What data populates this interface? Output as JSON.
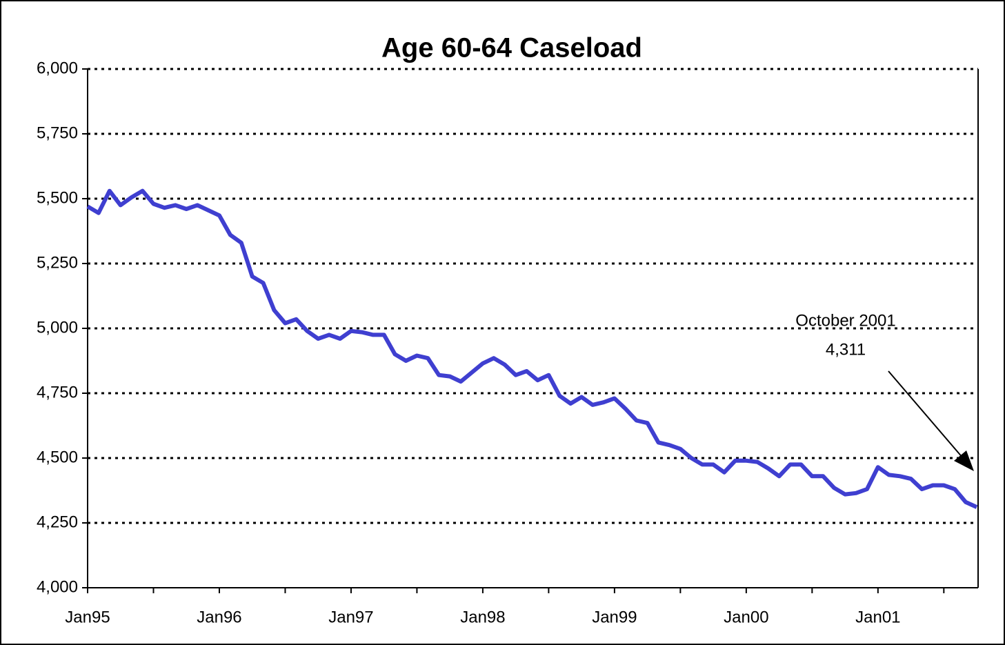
{
  "chart_data": {
    "type": "line",
    "title": "Age 60-64 Caseload",
    "categories": [
      "Jan95",
      null,
      null,
      null,
      null,
      null,
      null,
      null,
      null,
      null,
      null,
      null,
      "Jan96",
      null,
      null,
      null,
      null,
      null,
      null,
      null,
      null,
      null,
      null,
      null,
      "Jan97",
      null,
      null,
      null,
      null,
      null,
      null,
      null,
      null,
      null,
      null,
      null,
      "Jan98",
      null,
      null,
      null,
      null,
      null,
      null,
      null,
      null,
      null,
      null,
      null,
      "Jan99",
      null,
      null,
      null,
      null,
      null,
      null,
      null,
      null,
      null,
      null,
      null,
      "Jan00",
      null,
      null,
      null,
      null,
      null,
      null,
      null,
      null,
      null,
      null,
      null,
      "Jan01",
      null,
      null,
      null,
      null,
      null,
      null,
      null,
      null,
      null
    ],
    "series": [
      {
        "color": "#3f3fd0",
        "values": [
          5470,
          5445,
          5530,
          5475,
          5505,
          5530,
          5480,
          5465,
          5475,
          5460,
          5475,
          5455,
          5435,
          5360,
          5330,
          5200,
          5175,
          5070,
          5020,
          5035,
          4990,
          4960,
          4975,
          4960,
          4990,
          4985,
          4975,
          4975,
          4900,
          4875,
          4895,
          4885,
          4820,
          4815,
          4795,
          4830,
          4865,
          4885,
          4860,
          4820,
          4835,
          4800,
          4820,
          4740,
          4710,
          4735,
          4705,
          4715,
          4730,
          4690,
          4645,
          4635,
          4560,
          4550,
          4535,
          4500,
          4475,
          4475,
          4445,
          4490,
          4490,
          4485,
          4460,
          4430,
          4475,
          4475,
          4430,
          4430,
          4385,
          4360,
          4365,
          4380,
          4465,
          4435,
          4430,
          4420,
          4380,
          4395,
          4395,
          4380,
          4330,
          4311
        ]
      }
    ],
    "ylim": [
      4000,
      6000
    ],
    "yticks": [
      {
        "value": 4000,
        "label": "4,000"
      },
      {
        "value": 4250,
        "label": "4,250"
      },
      {
        "value": 4500,
        "label": "4,500"
      },
      {
        "value": 4750,
        "label": "4,750"
      },
      {
        "value": 5000,
        "label": "5,000"
      },
      {
        "value": 5250,
        "label": "5,250"
      },
      {
        "value": 5500,
        "label": "5,500"
      },
      {
        "value": 5750,
        "label": "5,750"
      },
      {
        "value": 6000,
        "label": "6,000"
      }
    ],
    "grid": true,
    "annotation": [
      "October 2001",
      "4,311"
    ]
  }
}
